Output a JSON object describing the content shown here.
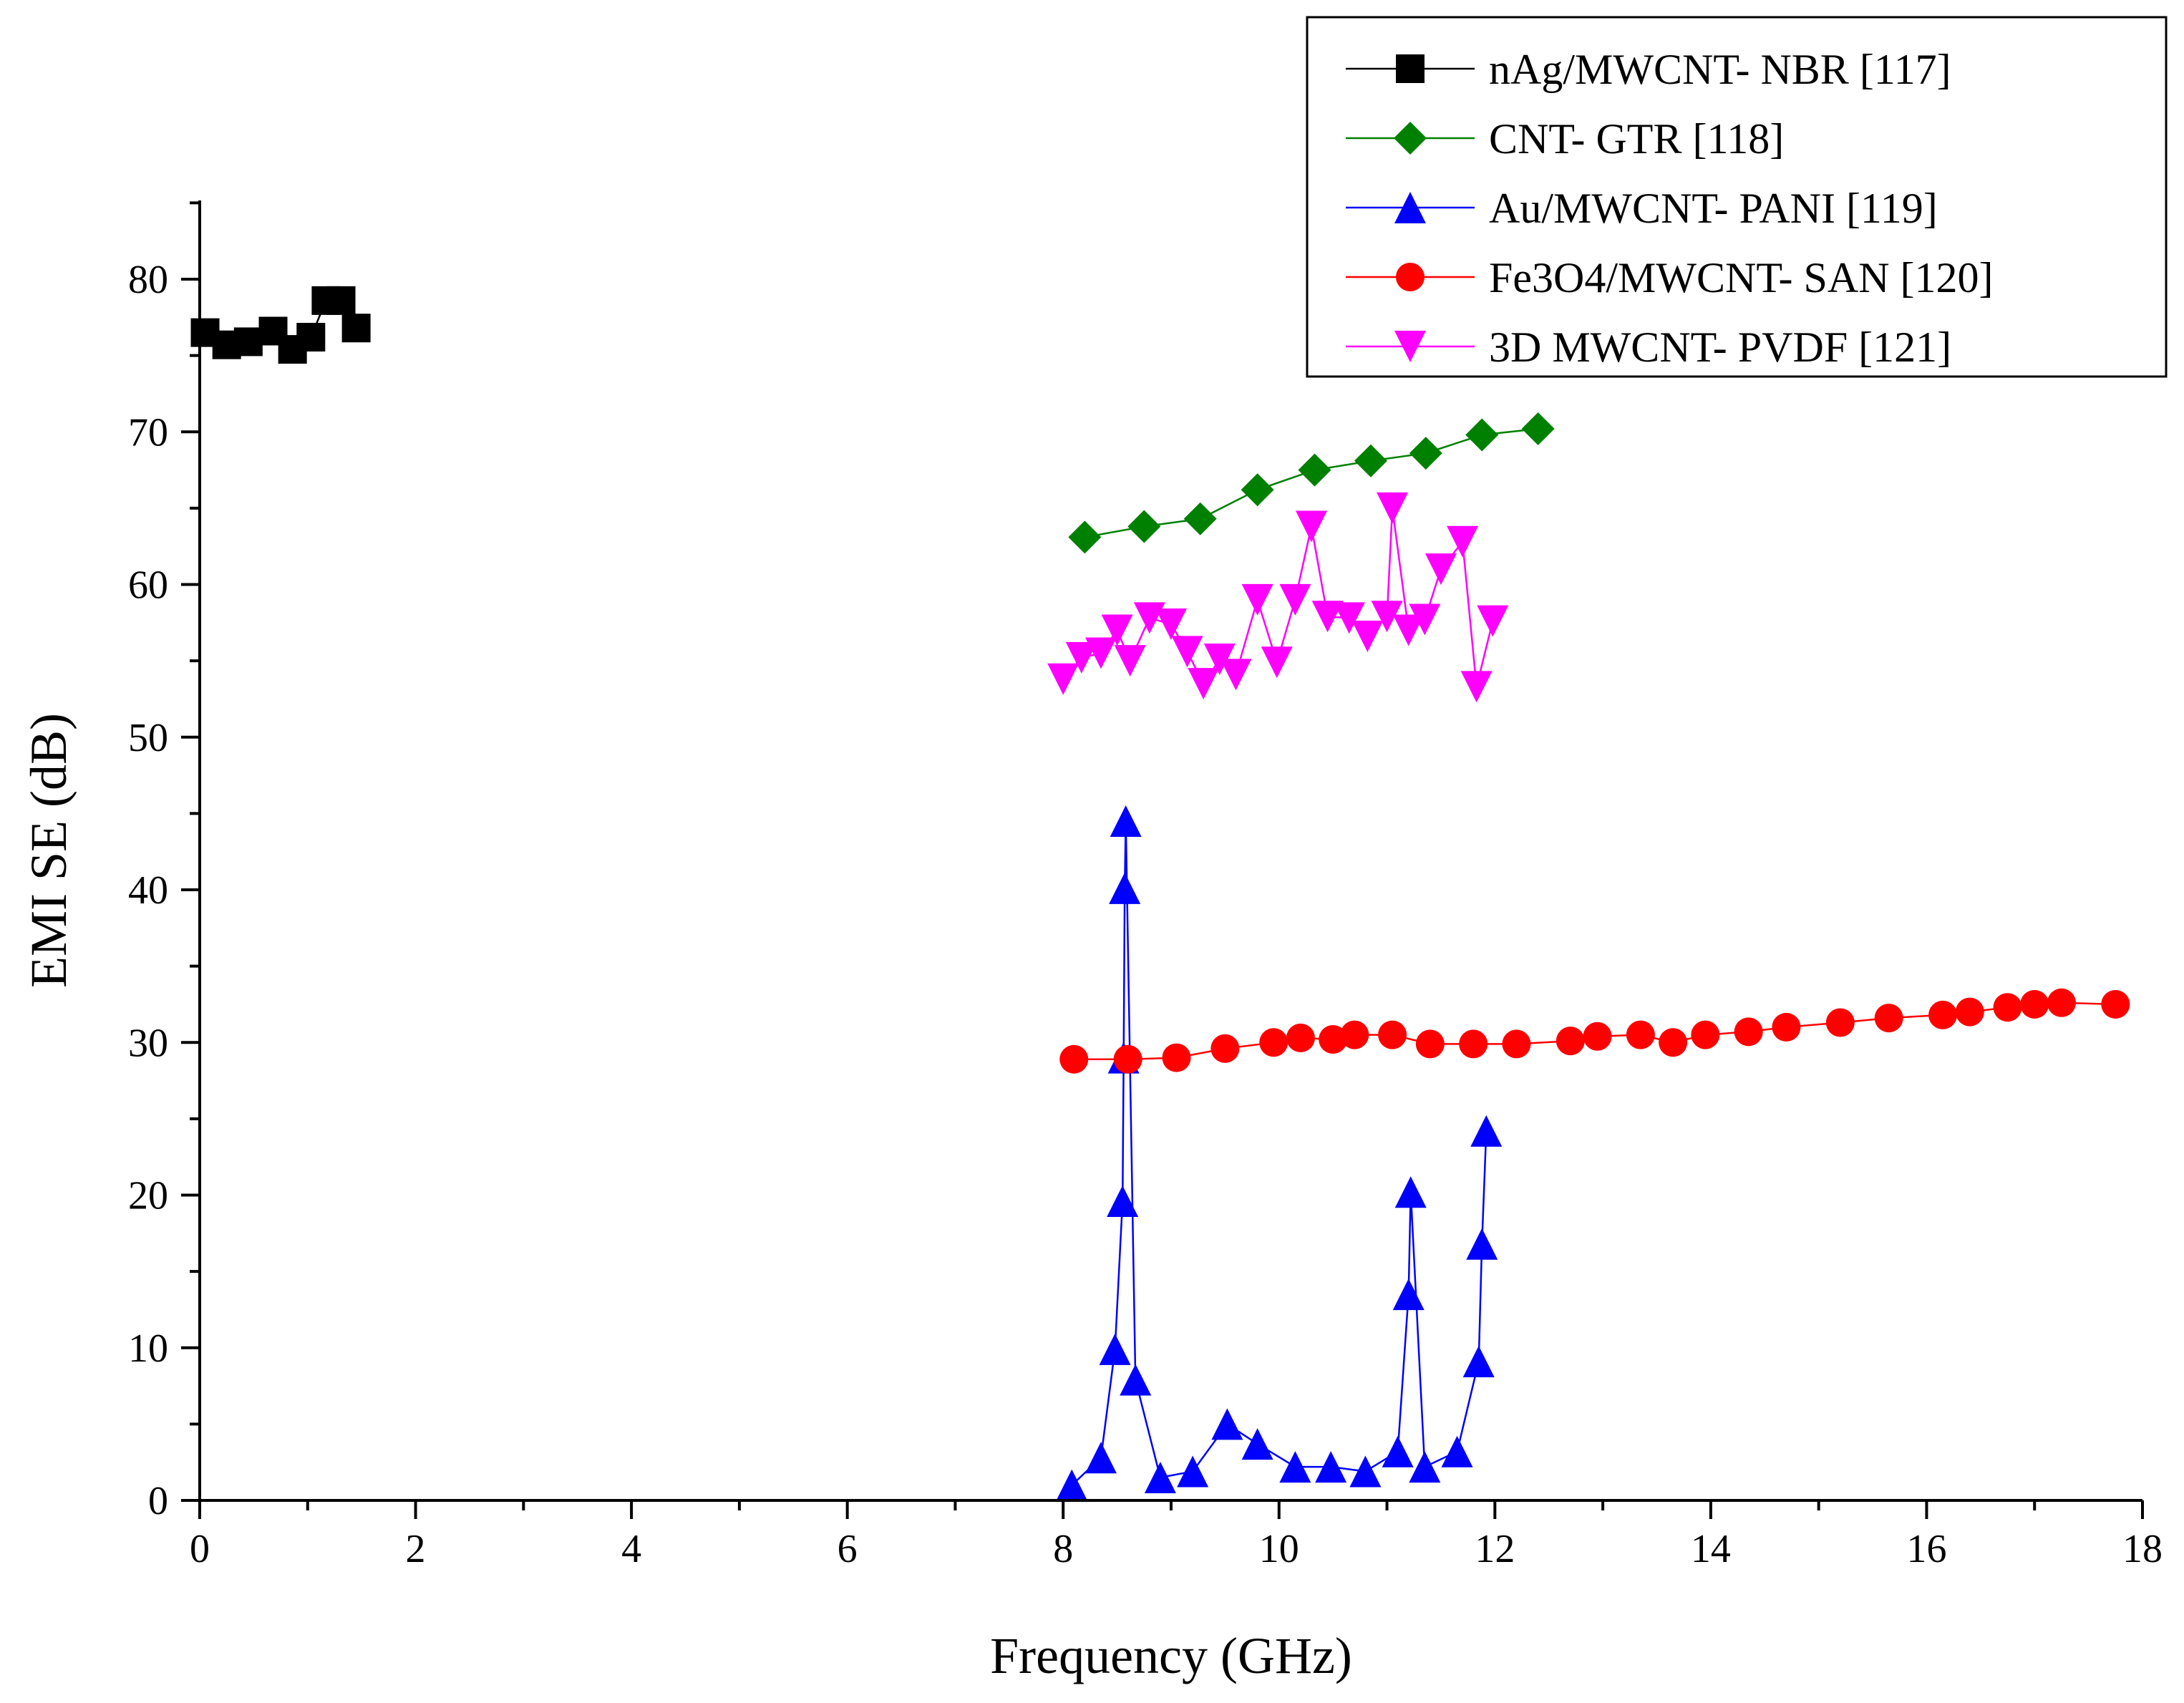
{
  "chart_data": {
    "type": "line",
    "title": "",
    "xlabel": "Frequency (GHz)",
    "ylabel": "EMI SE (dB)",
    "xlim": [
      0,
      18
    ],
    "ylim": [
      0,
      85
    ],
    "xticks": [
      0,
      2,
      4,
      6,
      8,
      10,
      12,
      14,
      16,
      18
    ],
    "yticks": [
      0,
      10,
      20,
      30,
      40,
      50,
      60,
      70,
      80
    ],
    "x_tick_labels": [
      "0",
      "2",
      "4",
      "6",
      "8",
      "10",
      "12",
      "14",
      "16",
      "18"
    ],
    "y_tick_labels": [
      "0",
      "10",
      "20",
      "30",
      "40",
      "50",
      "60",
      "70",
      "80"
    ],
    "legend_position": "top-right",
    "series": [
      {
        "name": "nAg/MWCNT- NBR [117]",
        "color": "#000000",
        "marker": "square",
        "x": [
          0.05,
          0.25,
          0.45,
          0.68,
          0.86,
          1.03,
          1.17,
          1.31,
          1.45
        ],
        "y": [
          76.5,
          75.7,
          75.9,
          76.6,
          75.4,
          76.2,
          78.6,
          78.6,
          76.8
        ]
      },
      {
        "name": "CNT- GTR [118]",
        "color": "#008000",
        "marker": "diamond",
        "x": [
          8.2,
          8.75,
          9.27,
          9.8,
          10.33,
          10.85,
          11.36,
          11.88,
          12.4
        ],
        "y": [
          63.1,
          63.8,
          64.3,
          66.2,
          67.5,
          68.1,
          68.6,
          69.8,
          70.2
        ]
      },
      {
        "name": "Au/MWCNT- PANI [119]",
        "color": "#0000ff",
        "marker": "triangle-up",
        "x": [
          8.08,
          8.35,
          8.48,
          8.55,
          8.56,
          8.57,
          8.58,
          8.67,
          8.9,
          9.2,
          9.52,
          9.8,
          10.15,
          10.48,
          10.8,
          11.1,
          11.2,
          11.22,
          11.35,
          11.65,
          11.85,
          11.88,
          11.92
        ],
        "y": [
          1.0,
          2.8,
          9.9,
          19.6,
          29.0,
          40.1,
          44.5,
          7.9,
          1.5,
          1.9,
          5.0,
          3.7,
          2.2,
          2.2,
          1.9,
          3.2,
          13.5,
          20.2,
          2.2,
          3.2,
          9.1,
          16.8,
          24.2
        ]
      },
      {
        "name": "Fe3O4/MWCNT- SAN [120]",
        "color": "#ff0000",
        "marker": "circle",
        "x": [
          8.1,
          8.6,
          9.05,
          9.5,
          9.95,
          10.2,
          10.5,
          10.7,
          11.05,
          11.4,
          11.8,
          12.2,
          12.7,
          12.95,
          13.35,
          13.65,
          13.95,
          14.35,
          14.7,
          15.2,
          15.65,
          16.15,
          16.4,
          16.75,
          17.0,
          17.25,
          17.75
        ],
        "y": [
          28.9,
          28.9,
          29.0,
          29.6,
          30.0,
          30.3,
          30.2,
          30.5,
          30.5,
          29.9,
          29.9,
          29.9,
          30.1,
          30.4,
          30.5,
          30.0,
          30.5,
          30.7,
          31.0,
          31.3,
          31.6,
          31.8,
          32.0,
          32.3,
          32.5,
          32.6,
          32.5
        ]
      },
      {
        "name": "3D MWCNT- PVDF [121]",
        "color": "#ff00ff",
        "marker": "triangle-down",
        "x": [
          8.0,
          8.17,
          8.35,
          8.5,
          8.62,
          8.8,
          9.0,
          9.15,
          9.3,
          9.45,
          9.6,
          9.8,
          9.98,
          10.15,
          10.3,
          10.45,
          10.65,
          10.82,
          11.0,
          11.05,
          11.2,
          11.35,
          11.5,
          11.7,
          11.83,
          11.98
        ],
        "y": [
          53.8,
          55.2,
          55.5,
          57.0,
          55.0,
          57.8,
          57.4,
          55.6,
          53.5,
          55.1,
          54.1,
          59.0,
          54.9,
          59.0,
          63.8,
          57.9,
          57.8,
          56.6,
          57.9,
          65.0,
          57.0,
          57.7,
          61.0,
          62.8,
          53.3,
          57.6
        ]
      }
    ]
  }
}
